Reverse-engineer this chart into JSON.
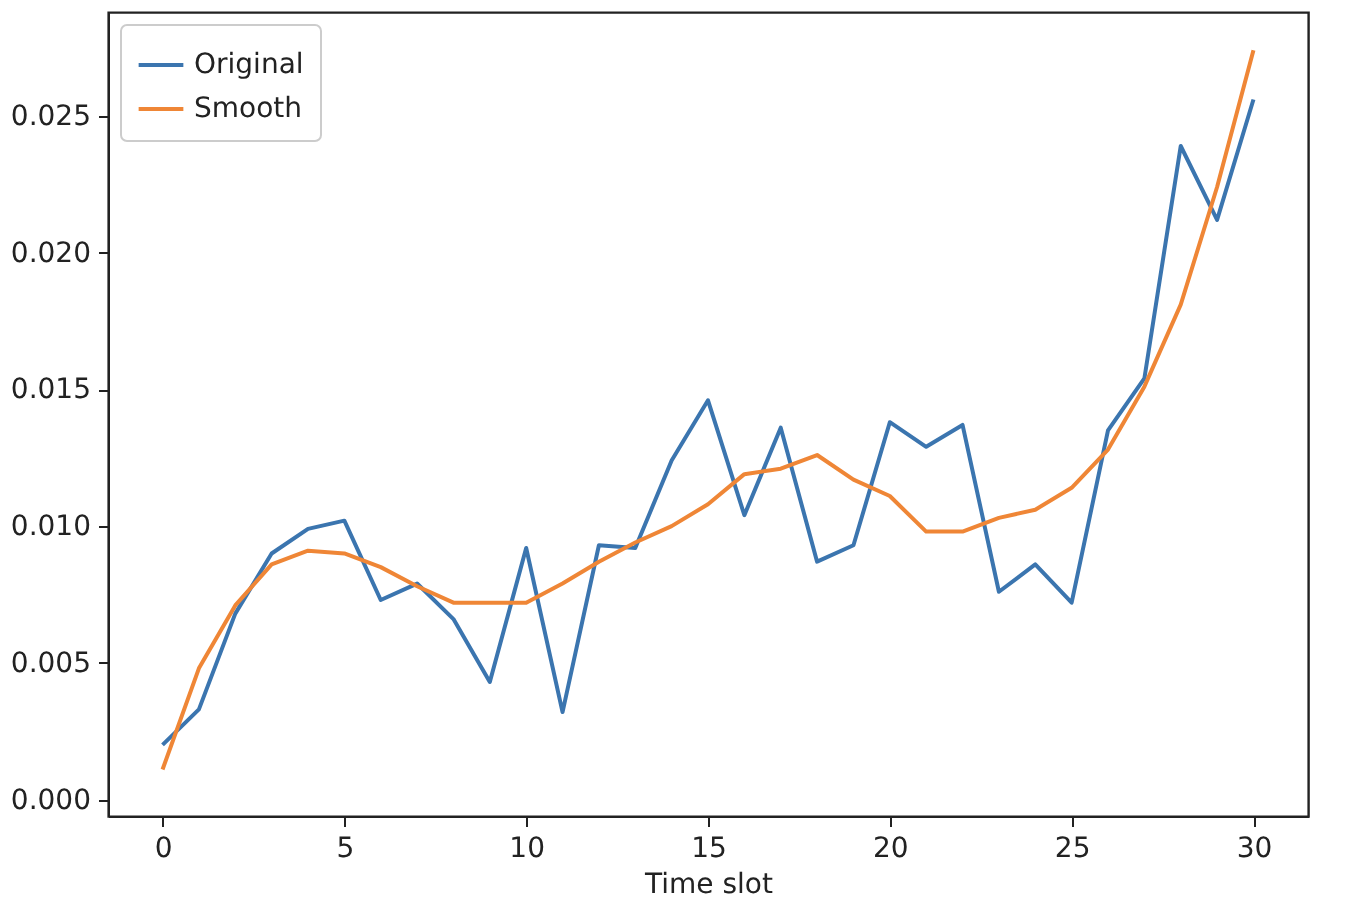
{
  "chart_data": {
    "type": "line",
    "xlabel": "Time slot",
    "x": [
      0,
      1,
      2,
      3,
      4,
      5,
      6,
      7,
      8,
      9,
      10,
      11,
      12,
      13,
      14,
      15,
      16,
      17,
      18,
      19,
      20,
      21,
      22,
      23,
      24,
      25,
      26,
      27,
      28,
      29,
      30
    ],
    "series": [
      {
        "name": "Original",
        "color": "#3b75af",
        "values": [
          0.002,
          0.0033,
          0.0068,
          0.009,
          0.0099,
          0.0102,
          0.0073,
          0.0079,
          0.0066,
          0.0043,
          0.0092,
          0.0032,
          0.0093,
          0.0092,
          0.0124,
          0.0146,
          0.0104,
          0.0136,
          0.0087,
          0.0093,
          0.0138,
          0.0129,
          0.0137,
          0.0076,
          0.0086,
          0.0072,
          0.0135,
          0.0154,
          0.0239,
          0.0212,
          0.0256
        ]
      },
      {
        "name": "Smooth",
        "color": "#ef8636",
        "values": [
          0.0011,
          0.0048,
          0.0071,
          0.0086,
          0.0091,
          0.009,
          0.0085,
          0.0078,
          0.0072,
          0.0072,
          0.0072,
          0.0079,
          0.0087,
          0.0094,
          0.01,
          0.0108,
          0.0119,
          0.0121,
          0.0126,
          0.0117,
          0.0111,
          0.0098,
          0.0098,
          0.0103,
          0.0106,
          0.0114,
          0.0128,
          0.0151,
          0.0181,
          0.0224,
          0.0274
        ]
      }
    ],
    "xlim": [
      -1.5,
      31.5
    ],
    "ylim": [
      -0.0006,
      0.0288
    ],
    "xticks": [
      0,
      5,
      10,
      15,
      20,
      25,
      30
    ],
    "yticks": [
      {
        "value": 0,
        "label": "0.000"
      },
      {
        "value": 0.005,
        "label": "0.005"
      },
      {
        "value": 0.01,
        "label": "0.010"
      },
      {
        "value": 0.015,
        "label": "0.015"
      },
      {
        "value": 0.02,
        "label": "0.020"
      },
      {
        "value": 0.025,
        "label": "0.025"
      }
    ],
    "grid": false,
    "legend": "top left",
    "marker": "none",
    "line_style": "solid"
  }
}
